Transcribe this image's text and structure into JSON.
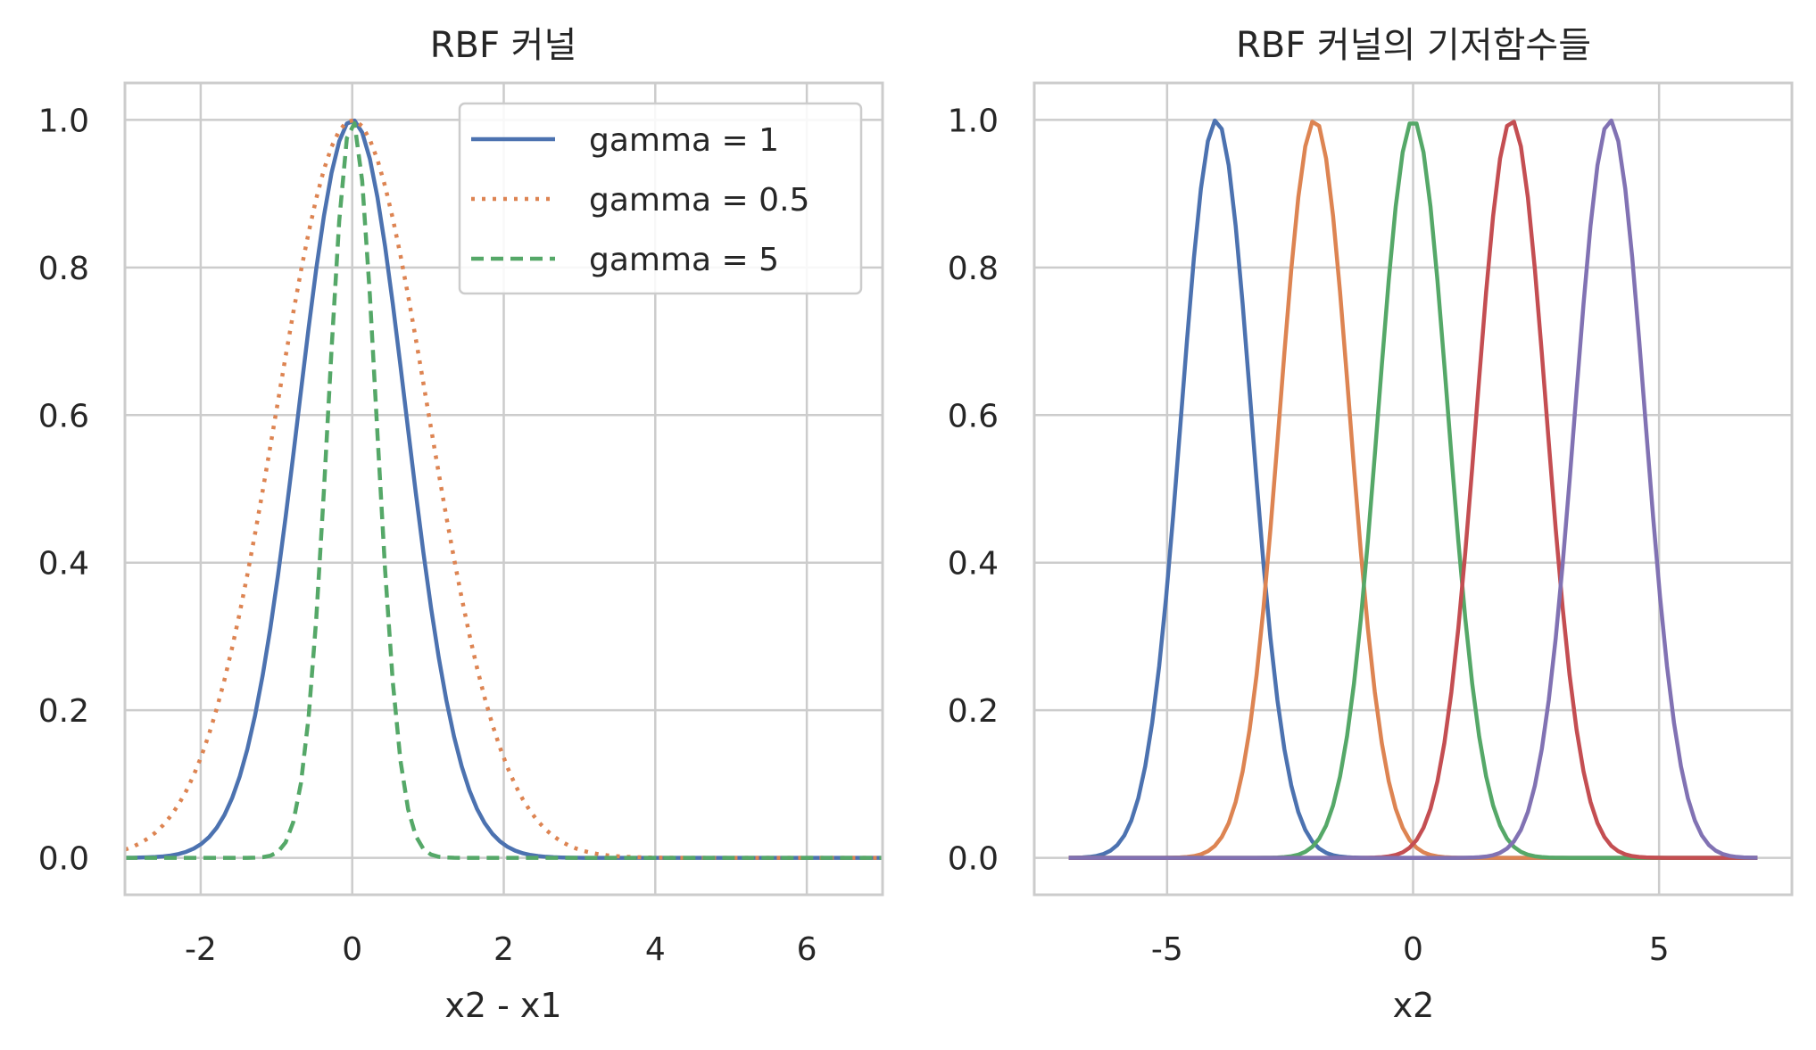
{
  "chart_data": [
    {
      "type": "line",
      "title": "RBF 커널",
      "xlabel": "x2 - x1",
      "ylabel": "",
      "xlim": [
        -3,
        7
      ],
      "ylim": [
        -0.05,
        1.05
      ],
      "xticks": [
        -2,
        0,
        2,
        4,
        6
      ],
      "xtick_labels": [
        "-2",
        "0",
        "2",
        "4",
        "6"
      ],
      "yticks": [
        0.0,
        0.2,
        0.4,
        0.6,
        0.8,
        1.0
      ],
      "ytick_labels": [
        "0.0",
        "0.2",
        "0.4",
        "0.6",
        "0.8",
        "1.0"
      ],
      "grid": true,
      "legend": "upper-right",
      "x_range": [
        -3,
        7
      ],
      "series": [
        {
          "name": "gamma = 1",
          "function": "exp(-gamma*x^2)",
          "gamma": 1,
          "style": "solid",
          "color": "#4c72b0"
        },
        {
          "name": "gamma = 0.5",
          "function": "exp(-gamma*x^2)",
          "gamma": 0.5,
          "style": "dotted",
          "color": "#dd8452"
        },
        {
          "name": "gamma = 5",
          "function": "exp(-gamma*x^2)",
          "gamma": 5,
          "style": "dashed",
          "color": "#55a868"
        }
      ]
    },
    {
      "type": "line",
      "title": "RBF 커널의 기저함수들",
      "xlabel": "x2",
      "ylabel": "",
      "xlim": [
        -7.7,
        7.7
      ],
      "ylim": [
        -0.05,
        1.05
      ],
      "xticks": [
        -5,
        0,
        5
      ],
      "xtick_labels": [
        "-5",
        "0",
        "5"
      ],
      "yticks": [
        0.0,
        0.2,
        0.4,
        0.6,
        0.8,
        1.0
      ],
      "ytick_labels": [
        "0.0",
        "0.2",
        "0.4",
        "0.6",
        "0.8",
        "1.0"
      ],
      "grid": true,
      "x_range": [
        -7,
        7
      ],
      "series": [
        {
          "center": -4,
          "gamma": 1,
          "color": "#4c72b0"
        },
        {
          "center": -2,
          "gamma": 1,
          "color": "#dd8452"
        },
        {
          "center": 0,
          "gamma": 1,
          "color": "#55a868"
        },
        {
          "center": 2,
          "gamma": 1,
          "color": "#c44e52"
        },
        {
          "center": 4,
          "gamma": 1,
          "color": "#8172b3"
        }
      ]
    }
  ]
}
